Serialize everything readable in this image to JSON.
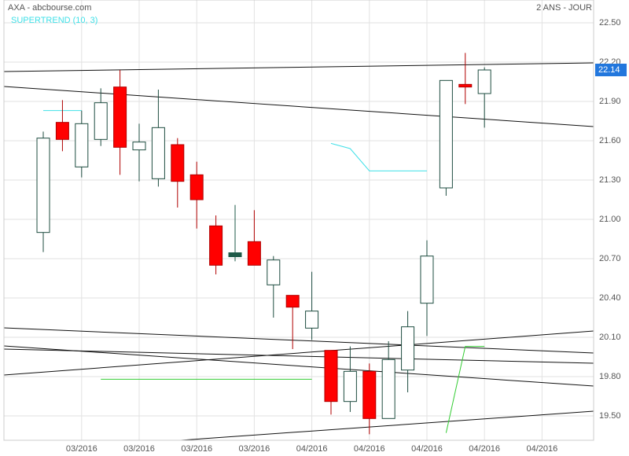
{
  "chart_data": {
    "type": "candlestick",
    "title": "AXA - abcbourse.com",
    "subtitle": "2 ANS - JOUR",
    "x": [
      0,
      1,
      2,
      3,
      4,
      5,
      6,
      7,
      8,
      9,
      10,
      11,
      12,
      13,
      14,
      15,
      16,
      17,
      18,
      19,
      20,
      21,
      22,
      23
    ],
    "open": [
      20.9,
      21.74,
      21.4,
      21.61,
      22.01,
      21.53,
      21.31,
      21.57,
      21.34,
      20.95,
      20.73,
      20.83,
      20.5,
      20.42,
      20.17,
      20.0,
      19.61,
      19.84,
      19.48,
      19.85,
      20.36,
      21.24,
      22.03,
      21.96
    ],
    "high": [
      21.67,
      21.91,
      21.83,
      22.0,
      22.14,
      21.73,
      21.99,
      21.62,
      21.44,
      21.03,
      21.11,
      21.07,
      20.72,
      20.42,
      20.6,
      20.0,
      20.03,
      19.9,
      20.07,
      20.3,
      20.84,
      22.06,
      22.27,
      22.16
    ],
    "low": [
      20.75,
      21.52,
      21.32,
      21.56,
      21.34,
      21.29,
      21.25,
      21.09,
      20.93,
      20.58,
      20.68,
      20.65,
      20.25,
      20.01,
      20.08,
      19.51,
      19.53,
      19.36,
      19.48,
      19.68,
      20.11,
      21.18,
      21.88,
      21.7
    ],
    "close": [
      21.62,
      21.61,
      21.73,
      21.89,
      21.55,
      21.59,
      21.7,
      21.29,
      21.15,
      20.65,
      20.73,
      20.65,
      20.69,
      20.33,
      20.3,
      19.61,
      19.84,
      19.48,
      19.93,
      20.18,
      20.72,
      22.06,
      22.01,
      22.14
    ],
    "up_color": "#1e4d40",
    "down_color": "#ff0000",
    "flat_color": "#1e5a48",
    "indicator": {
      "name": "SUPERTREND (10, 3)",
      "segments": [
        {
          "color": "#40e0e8",
          "values": [
            21.83,
            21.83,
            21.83,
            null,
            null,
            null,
            null,
            null,
            null,
            null,
            null,
            null,
            null,
            null,
            null,
            21.58,
            21.54,
            21.37,
            21.37,
            21.37,
            21.37,
            null,
            null,
            null
          ]
        },
        {
          "color": "#33cc33",
          "values": [
            null,
            null,
            null,
            19.78,
            19.78,
            19.78,
            19.78,
            19.78,
            19.78,
            19.78,
            19.78,
            19.78,
            19.78,
            19.78,
            19.78,
            null,
            null,
            null,
            null,
            null,
            null,
            19.37,
            20.03,
            20.03
          ]
        }
      ]
    },
    "last_color": "#2277dd",
    "xlim": [
      -2.05,
      28.69
    ],
    "xticks": [
      {
        "value": 2,
        "label": "03/2016"
      },
      {
        "value": 5,
        "label": "03/2016"
      },
      {
        "value": 8,
        "label": "03/2016"
      },
      {
        "value": 11,
        "label": "03/2016"
      },
      {
        "value": 14,
        "label": "04/2016"
      },
      {
        "value": 17,
        "label": "04/2016"
      },
      {
        "value": 20,
        "label": "04/2016"
      },
      {
        "value": 23,
        "label": "04/2016"
      },
      {
        "value": 26,
        "label": "04/2016"
      }
    ],
    "ylim": [
      19.314,
      22.674
    ],
    "yticks": [
      {
        "value": 19.5,
        "label": "19.50"
      },
      {
        "value": 19.8,
        "label": "19.80"
      },
      {
        "value": 20.1,
        "label": "20.10"
      },
      {
        "value": 20.4,
        "label": "20.40"
      },
      {
        "value": 20.7,
        "label": "20.70"
      },
      {
        "value": 21.0,
        "label": "21.00"
      },
      {
        "value": 21.3,
        "label": "21.30"
      },
      {
        "value": 21.6,
        "label": "21.60"
      },
      {
        "value": 21.9,
        "label": "21.90"
      },
      {
        "value": 22.2,
        "label": "22.20"
      },
      {
        "value": 22.5,
        "label": "22.50"
      }
    ],
    "grid": true
  }
}
